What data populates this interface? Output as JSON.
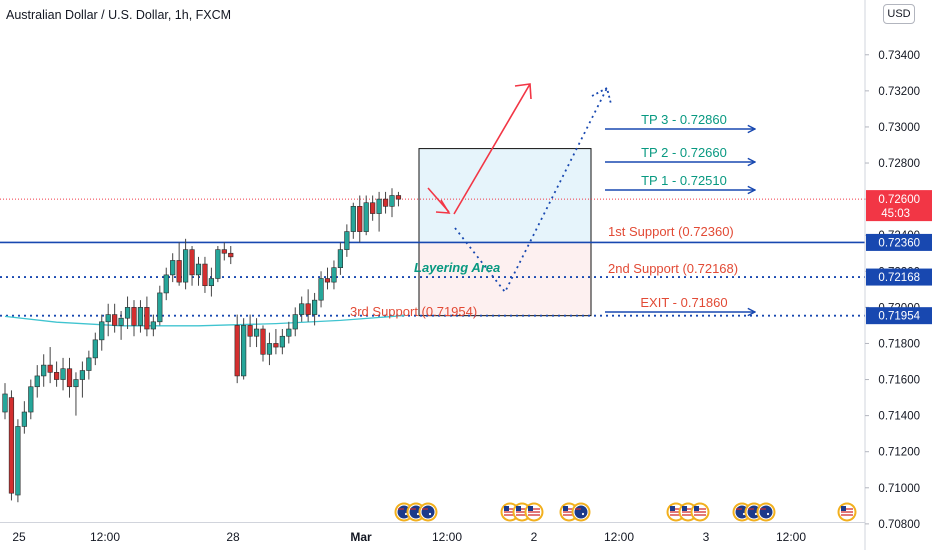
{
  "header": {
    "title": "Australian Dollar / U.S. Dollar, 1h, FXCM",
    "currency_button": "USD"
  },
  "colors": {
    "up": "#26a69a",
    "down": "#d32f2f",
    "wick": "#444444",
    "price_red": "#f23645",
    "support_blue": "#1848b0",
    "ma_cyan": "#40c4d0",
    "tp_teal": "#089981",
    "support_text": "#e24a35",
    "tp_box_fill": "#e6f4fb",
    "sl_box_fill": "#fdf0f0"
  },
  "chart_data": {
    "type": "candlestick",
    "title": "Australian Dollar / U.S. Dollar, 1h, FXCM",
    "ylim": [
      0.7075,
      0.7357
    ],
    "y_ticks": [
      "0.73400",
      "0.73200",
      "0.73000",
      "0.72800",
      "0.72600",
      "0.72400",
      "0.72200",
      "0.72000",
      "0.71800",
      "0.71600",
      "0.71400",
      "0.71200",
      "0.71000",
      "0.70800"
    ],
    "x_ticks": [
      "25",
      "12:00",
      "28",
      "Mar",
      "12:00",
      "2",
      "12:00",
      "3",
      "12:00"
    ],
    "last_price": {
      "value": 0.726,
      "label": "0.72600",
      "countdown": "45:03"
    },
    "candles": [
      {
        "o": 0.7142,
        "h": 0.7158,
        "l": 0.7138,
        "c": 0.7152
      },
      {
        "o": 0.715,
        "h": 0.7154,
        "l": 0.7093,
        "c": 0.7097
      },
      {
        "o": 0.7096,
        "h": 0.7138,
        "l": 0.7092,
        "c": 0.7134
      },
      {
        "o": 0.7134,
        "h": 0.7148,
        "l": 0.713,
        "c": 0.7142
      },
      {
        "o": 0.7142,
        "h": 0.716,
        "l": 0.7138,
        "c": 0.7156
      },
      {
        "o": 0.7156,
        "h": 0.7168,
        "l": 0.715,
        "c": 0.7162
      },
      {
        "o": 0.7162,
        "h": 0.7174,
        "l": 0.7156,
        "c": 0.7168
      },
      {
        "o": 0.7168,
        "h": 0.7178,
        "l": 0.7158,
        "c": 0.7164
      },
      {
        "o": 0.7164,
        "h": 0.717,
        "l": 0.7156,
        "c": 0.716
      },
      {
        "o": 0.716,
        "h": 0.7172,
        "l": 0.7154,
        "c": 0.7166
      },
      {
        "o": 0.7166,
        "h": 0.7172,
        "l": 0.715,
        "c": 0.7156
      },
      {
        "o": 0.7156,
        "h": 0.7164,
        "l": 0.714,
        "c": 0.716
      },
      {
        "o": 0.716,
        "h": 0.717,
        "l": 0.715,
        "c": 0.7165
      },
      {
        "o": 0.7165,
        "h": 0.7176,
        "l": 0.716,
        "c": 0.7172
      },
      {
        "o": 0.7172,
        "h": 0.7186,
        "l": 0.7168,
        "c": 0.7182
      },
      {
        "o": 0.7182,
        "h": 0.7196,
        "l": 0.7176,
        "c": 0.7192
      },
      {
        "o": 0.7192,
        "h": 0.7202,
        "l": 0.7184,
        "c": 0.7196
      },
      {
        "o": 0.7196,
        "h": 0.7202,
        "l": 0.7186,
        "c": 0.719
      },
      {
        "o": 0.719,
        "h": 0.7198,
        "l": 0.7182,
        "c": 0.7194
      },
      {
        "o": 0.7194,
        "h": 0.7206,
        "l": 0.7188,
        "c": 0.72
      },
      {
        "o": 0.72,
        "h": 0.7204,
        "l": 0.7184,
        "c": 0.719
      },
      {
        "o": 0.719,
        "h": 0.7204,
        "l": 0.7186,
        "c": 0.72
      },
      {
        "o": 0.72,
        "h": 0.7206,
        "l": 0.7184,
        "c": 0.7188
      },
      {
        "o": 0.7188,
        "h": 0.7196,
        "l": 0.7184,
        "c": 0.7192
      },
      {
        "o": 0.7192,
        "h": 0.7212,
        "l": 0.719,
        "c": 0.7208
      },
      {
        "o": 0.7208,
        "h": 0.7222,
        "l": 0.7204,
        "c": 0.7218
      },
      {
        "o": 0.7218,
        "h": 0.723,
        "l": 0.7214,
        "c": 0.7226
      },
      {
        "o": 0.7226,
        "h": 0.7236,
        "l": 0.7212,
        "c": 0.7214
      },
      {
        "o": 0.7214,
        "h": 0.7238,
        "l": 0.721,
        "c": 0.7232
      },
      {
        "o": 0.7232,
        "h": 0.7234,
        "l": 0.7212,
        "c": 0.7218
      },
      {
        "o": 0.7218,
        "h": 0.7228,
        "l": 0.7212,
        "c": 0.7224
      },
      {
        "o": 0.7224,
        "h": 0.7228,
        "l": 0.7208,
        "c": 0.7212
      },
      {
        "o": 0.7212,
        "h": 0.7222,
        "l": 0.7206,
        "c": 0.7216
      },
      {
        "o": 0.7216,
        "h": 0.7234,
        "l": 0.7214,
        "c": 0.7232
      },
      {
        "o": 0.7232,
        "h": 0.7236,
        "l": 0.7226,
        "c": 0.723
      },
      {
        "o": 0.723,
        "h": 0.7234,
        "l": 0.7224,
        "c": 0.7228
      },
      {
        "o": 0.719,
        "h": 0.7196,
        "l": 0.7158,
        "c": 0.7162
      },
      {
        "o": 0.7162,
        "h": 0.7194,
        "l": 0.716,
        "c": 0.719
      },
      {
        "o": 0.719,
        "h": 0.7196,
        "l": 0.7178,
        "c": 0.7184
      },
      {
        "o": 0.7184,
        "h": 0.7194,
        "l": 0.7178,
        "c": 0.7188
      },
      {
        "o": 0.7188,
        "h": 0.719,
        "l": 0.717,
        "c": 0.7174
      },
      {
        "o": 0.7174,
        "h": 0.7186,
        "l": 0.7168,
        "c": 0.718
      },
      {
        "o": 0.718,
        "h": 0.7188,
        "l": 0.7174,
        "c": 0.7178
      },
      {
        "o": 0.7178,
        "h": 0.7188,
        "l": 0.7174,
        "c": 0.7184
      },
      {
        "o": 0.7184,
        "h": 0.7192,
        "l": 0.718,
        "c": 0.7188
      },
      {
        "o": 0.7188,
        "h": 0.72,
        "l": 0.7184,
        "c": 0.7196
      },
      {
        "o": 0.7196,
        "h": 0.7206,
        "l": 0.7192,
        "c": 0.7202
      },
      {
        "o": 0.7202,
        "h": 0.721,
        "l": 0.7192,
        "c": 0.7196
      },
      {
        "o": 0.7196,
        "h": 0.7208,
        "l": 0.719,
        "c": 0.7204
      },
      {
        "o": 0.7204,
        "h": 0.722,
        "l": 0.72,
        "c": 0.7216
      },
      {
        "o": 0.7216,
        "h": 0.7222,
        "l": 0.721,
        "c": 0.7214
      },
      {
        "o": 0.7214,
        "h": 0.7226,
        "l": 0.721,
        "c": 0.7222
      },
      {
        "o": 0.7222,
        "h": 0.7236,
        "l": 0.7218,
        "c": 0.7232
      },
      {
        "o": 0.7232,
        "h": 0.7246,
        "l": 0.7228,
        "c": 0.7242
      },
      {
        "o": 0.7242,
        "h": 0.7258,
        "l": 0.7238,
        "c": 0.7256
      },
      {
        "o": 0.7256,
        "h": 0.7262,
        "l": 0.7236,
        "c": 0.7242
      },
      {
        "o": 0.7242,
        "h": 0.7262,
        "l": 0.724,
        "c": 0.7258
      },
      {
        "o": 0.7258,
        "h": 0.7262,
        "l": 0.7248,
        "c": 0.7252
      },
      {
        "o": 0.7252,
        "h": 0.7264,
        "l": 0.7242,
        "c": 0.726
      },
      {
        "o": 0.726,
        "h": 0.7264,
        "l": 0.7252,
        "c": 0.7256
      },
      {
        "o": 0.7256,
        "h": 0.7266,
        "l": 0.725,
        "c": 0.7262
      },
      {
        "o": 0.7262,
        "h": 0.7264,
        "l": 0.7256,
        "c": 0.726
      }
    ],
    "moving_average": [
      {
        "t": 0,
        "v": 0.7195
      },
      {
        "t": 8,
        "v": 0.71918
      },
      {
        "t": 18,
        "v": 0.71898
      },
      {
        "t": 30,
        "v": 0.71898
      },
      {
        "t": 42,
        "v": 0.7191
      },
      {
        "t": 52,
        "v": 0.71928
      },
      {
        "t": 62,
        "v": 0.71955
      }
    ],
    "annotations": {
      "levels": [
        {
          "value": 0.7236,
          "style": "solid",
          "label": "1st Support (0.72360)",
          "axis_label": "0.72360"
        },
        {
          "value": 0.72168,
          "style": "dotted",
          "label": "2nd Support (0.72168)",
          "axis_label": "0.72168"
        },
        {
          "value": 0.71954,
          "style": "dotted",
          "label": "3rd Support (0.71954)",
          "axis_label": "0.71954"
        }
      ],
      "targets": [
        {
          "value": 0.7286,
          "label": "TP 3 - 0.72860"
        },
        {
          "value": 0.7266,
          "label": "TP 2 - 0.72660"
        },
        {
          "value": 0.7251,
          "label": "TP 1 - 0.72510"
        },
        {
          "value": 0.7186,
          "label": "EXIT - 0.71860"
        }
      ],
      "layering_area": {
        "label": "Layering Area",
        "top": 0.7236,
        "bottom": 0.71954
      },
      "position_box": {
        "top": 0.7288,
        "entry": 0.7236,
        "bottom": 0.71954
      }
    },
    "events": [
      {
        "slot": 0,
        "icons": [
          "au",
          "au",
          "au"
        ]
      },
      {
        "slot": 1,
        "icons": [
          "us",
          "us",
          "us"
        ]
      },
      {
        "slot": 2,
        "icons": [
          "us",
          "au"
        ]
      },
      {
        "slot": 3,
        "icons": [
          "us",
          "us",
          "us"
        ]
      },
      {
        "slot": 4,
        "icons": [
          "au",
          "au",
          "au"
        ]
      },
      {
        "slot": 5,
        "icons": [
          "us"
        ]
      }
    ]
  }
}
